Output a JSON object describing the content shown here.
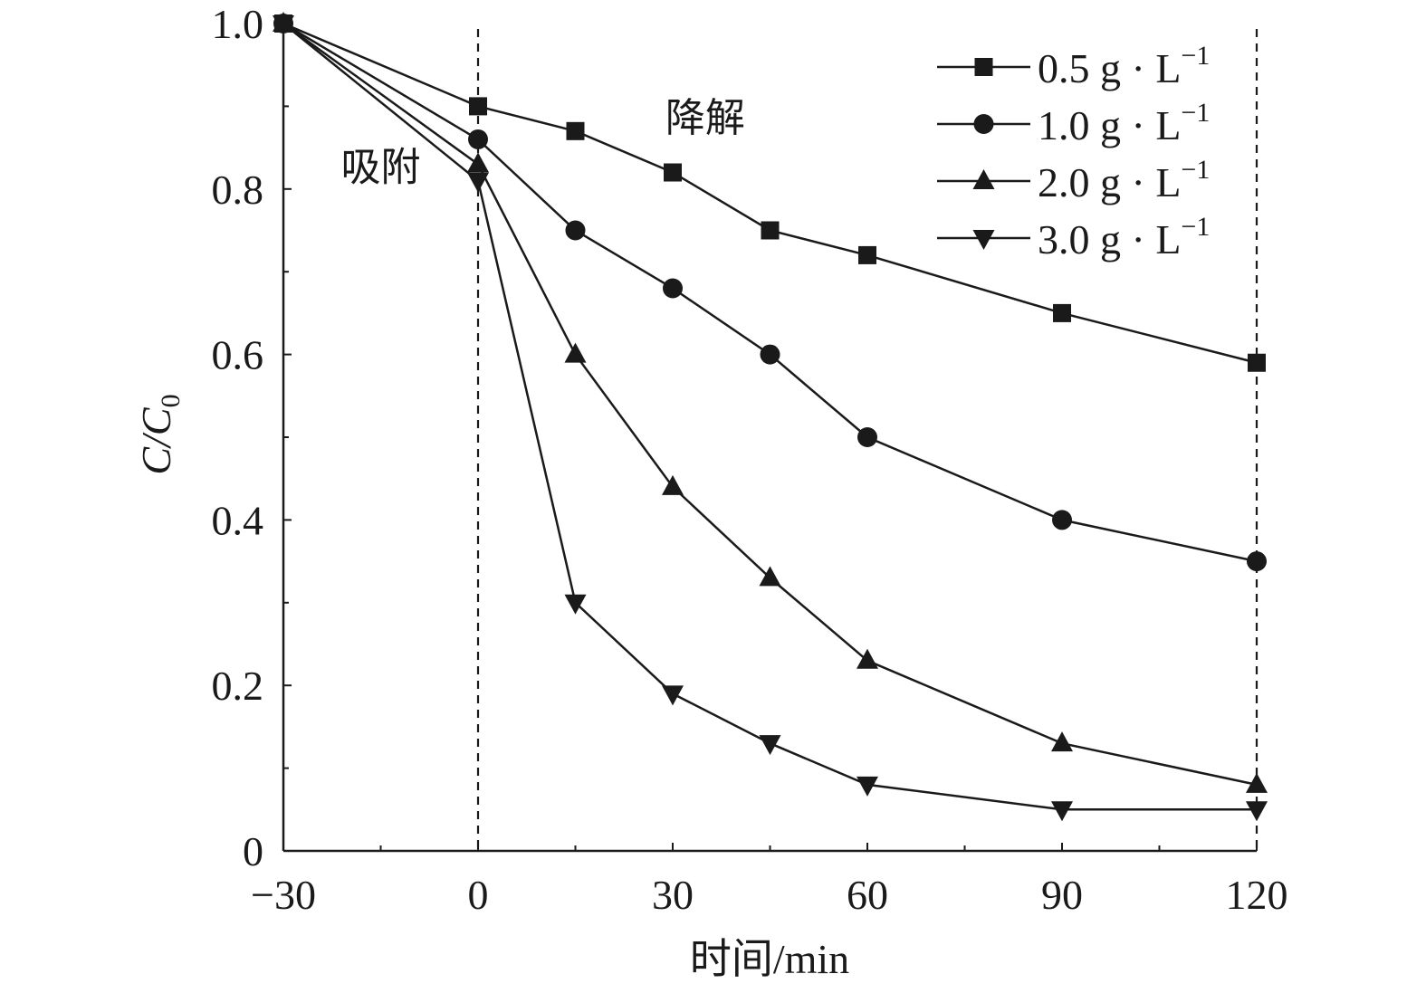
{
  "chart_data": {
    "type": "line",
    "xlabel": "时间/min",
    "ylabel": "C/C",
    "ylabel_sub": "0",
    "xlim": [
      -30,
      120
    ],
    "ylim": [
      0,
      1.0
    ],
    "x_ticks": [
      -30,
      0,
      30,
      60,
      90,
      120
    ],
    "x_tick_labels": [
      "−30",
      "0",
      "30",
      "60",
      "90",
      "120"
    ],
    "x_minor_ticks": [
      -15,
      15,
      45,
      75,
      105
    ],
    "y_ticks": [
      0,
      0.2,
      0.4,
      0.6,
      0.8,
      1.0
    ],
    "y_tick_labels": [
      "0",
      "0.2",
      "0.4",
      "0.6",
      "0.8",
      "1.0"
    ],
    "y_minor_ticks": [
      0.1,
      0.3,
      0.5,
      0.7,
      0.9
    ],
    "vlines": [
      0,
      120
    ],
    "annotations": [
      {
        "text": "吸附",
        "x": -15,
        "y": 0.81
      },
      {
        "text": "降解",
        "x": 35,
        "y": 0.87
      }
    ],
    "legend_position": "top-right",
    "grid": false,
    "series": [
      {
        "name": "0.5 g · L",
        "unit_sup": "−1",
        "marker": "square",
        "x": [
          -30,
          0,
          15,
          30,
          45,
          60,
          90,
          120
        ],
        "y": [
          1.0,
          0.9,
          0.87,
          0.82,
          0.75,
          0.72,
          0.65,
          0.59
        ]
      },
      {
        "name": "1.0 g · L",
        "unit_sup": "−1",
        "marker": "circle",
        "x": [
          -30,
          0,
          15,
          30,
          45,
          60,
          90,
          120
        ],
        "y": [
          1.0,
          0.86,
          0.75,
          0.68,
          0.6,
          0.5,
          0.4,
          0.35
        ]
      },
      {
        "name": "2.0 g · L",
        "unit_sup": "−1",
        "marker": "triangle-up",
        "x": [
          -30,
          0,
          15,
          30,
          45,
          60,
          90,
          120
        ],
        "y": [
          1.0,
          0.83,
          0.6,
          0.44,
          0.33,
          0.23,
          0.13,
          0.08
        ]
      },
      {
        "name": "3.0 g · L",
        "unit_sup": "−1",
        "marker": "triangle-down",
        "x": [
          -30,
          0,
          15,
          30,
          45,
          60,
          90,
          120
        ],
        "y": [
          1.0,
          0.81,
          0.3,
          0.19,
          0.13,
          0.08,
          0.05,
          0.05
        ]
      }
    ],
    "color": "#1a1a1a"
  }
}
